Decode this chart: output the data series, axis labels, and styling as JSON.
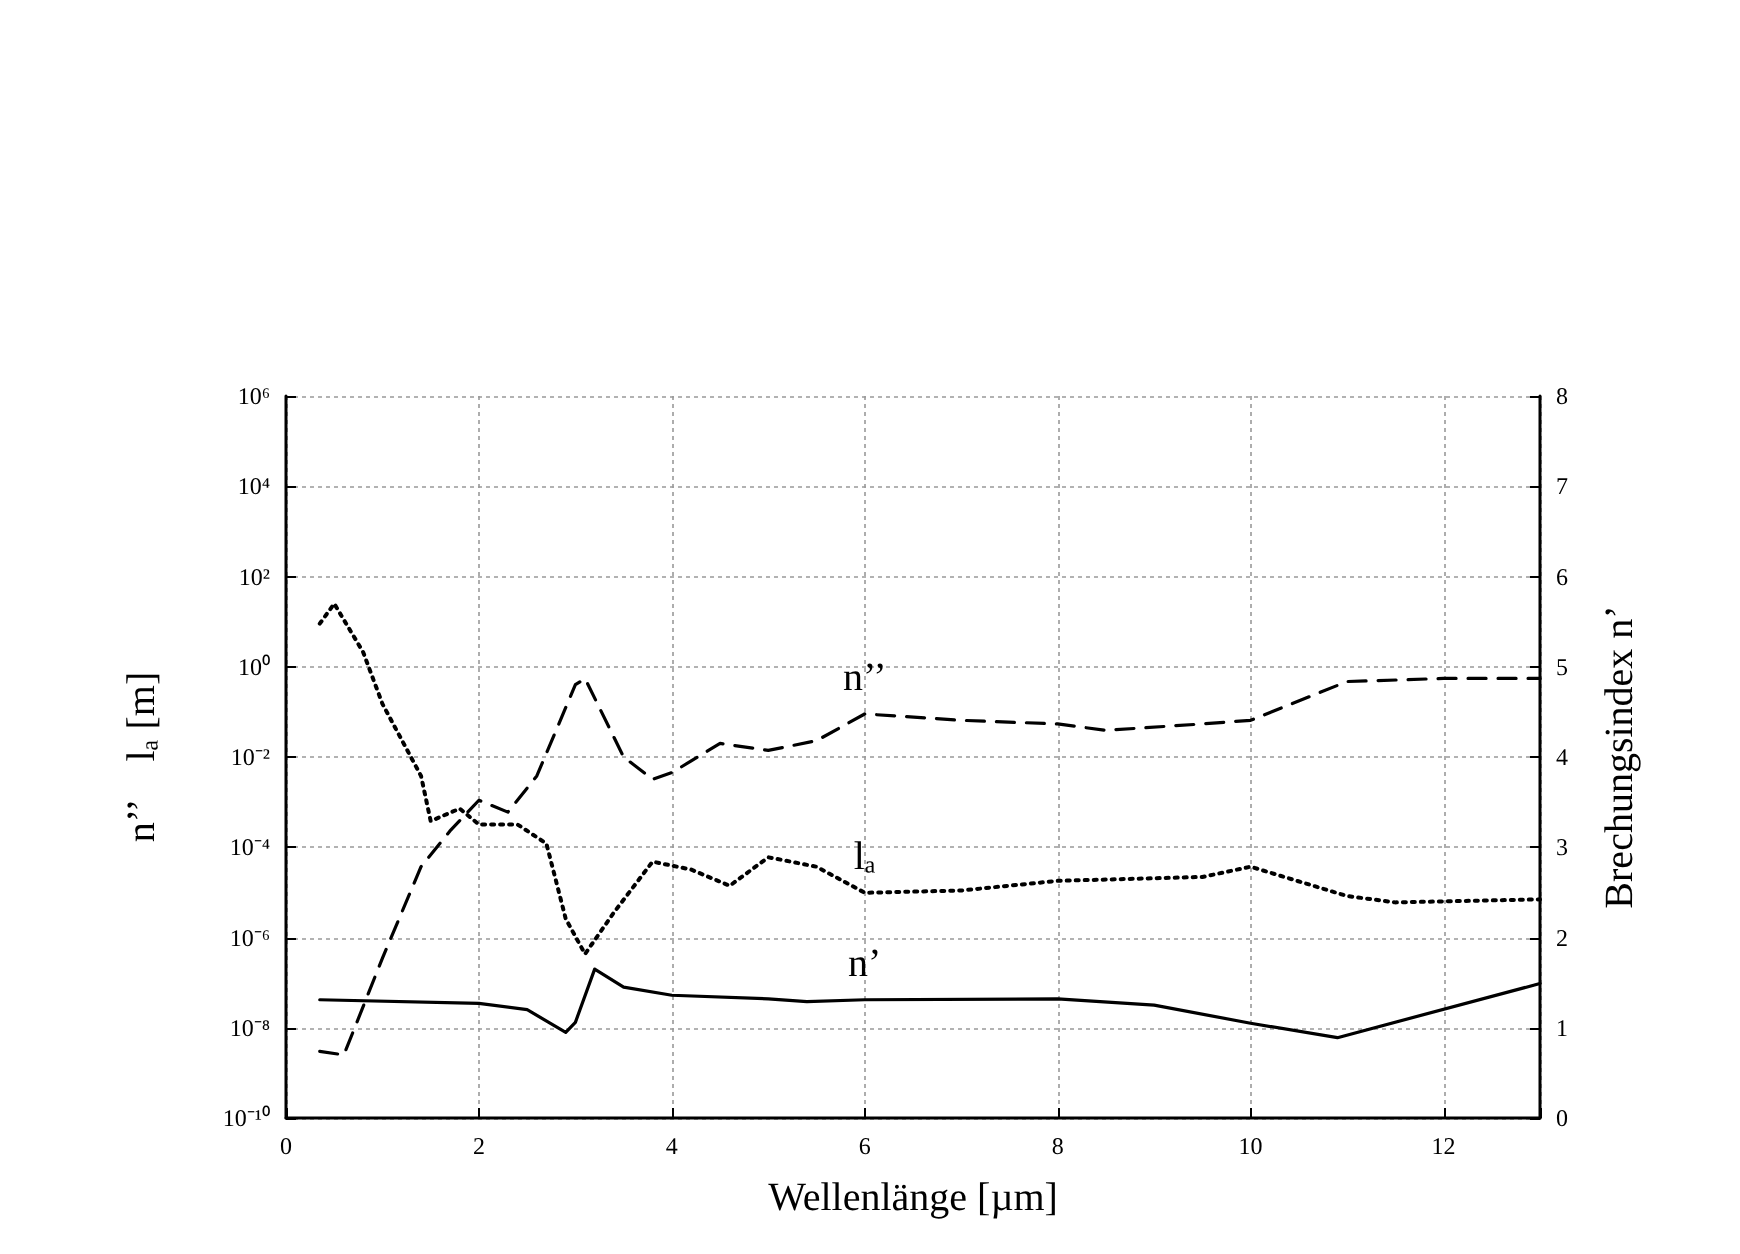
{
  "chart_data": {
    "type": "line",
    "xlabel": "Wellenlänge [µm]",
    "ylabel": "n’’    lₐ [m]",
    "y2label": "Brechungsindex n’",
    "xlim": [
      0,
      13
    ],
    "xticks": [
      0,
      2,
      4,
      6,
      8,
      10,
      12
    ],
    "ylim": [
      1e-10,
      1000000.0
    ],
    "yticks": [
      {
        "value": 1e-10,
        "label": "10⁻¹⁰"
      },
      {
        "value": 1e-08,
        "label": "10⁻⁸"
      },
      {
        "value": 1e-06,
        "label": "10⁻⁶"
      },
      {
        "value": 0.0001,
        "label": "10⁻⁴"
      },
      {
        "value": 0.01,
        "label": "10⁻²"
      },
      {
        "value": 1,
        "label": "10⁰"
      },
      {
        "value": 100,
        "label": "10²"
      },
      {
        "value": 10000,
        "label": "10⁴"
      },
      {
        "value": 1000000,
        "label": "10⁶"
      }
    ],
    "y2lim": [
      0,
      8
    ],
    "y2ticks": [
      0,
      1,
      2,
      3,
      4,
      5,
      6,
      7,
      8
    ],
    "log": "y",
    "grid": true,
    "legend": false,
    "marker": "none",
    "series": [
      {
        "name": "n’’",
        "color": "#000000",
        "line_style": "dashed",
        "x": [
          0.35,
          0.6,
          1,
          1.4,
          1.7,
          2,
          2.3,
          2.6,
          3,
          3.1,
          3.5,
          3.8,
          4,
          4.5,
          5,
          5.5,
          6,
          7,
          8,
          8.5,
          9.5,
          10,
          11,
          12,
          13
        ],
        "values": [
          3e-09,
          2.5e-09,
          3.5e-07,
          3.7e-05,
          0.00023,
          0.0011,
          0.0006,
          0.0038,
          0.4,
          0.55,
          0.01,
          0.0032,
          0.0045,
          0.02,
          0.014,
          0.023,
          0.09,
          0.065,
          0.054,
          0.039,
          0.054,
          0.065,
          0.47,
          0.55,
          0.55
        ]
      },
      {
        "name": "lₐ",
        "color": "#000000",
        "line_style": "dotted",
        "x": [
          0.35,
          0.5,
          0.8,
          1,
          1.4,
          1.5,
          1.8,
          2,
          2.4,
          2.7,
          2.9,
          3.1,
          3.4,
          3.8,
          4.2,
          4.6,
          5,
          5.5,
          6,
          7,
          8,
          9.5,
          10,
          11,
          11.5,
          13
        ],
        "values": [
          9,
          25,
          2.1,
          0.15,
          0.0038,
          0.00038,
          0.00072,
          0.00032,
          0.00032,
          0.00012,
          2.6e-06,
          4.3e-07,
          3.6e-06,
          4.8e-05,
          3.2e-05,
          1.4e-05,
          6e-05,
          3.7e-05,
          9.8e-06,
          1.1e-05,
          1.8e-05,
          2.2e-05,
          3.7e-05,
          8.3e-06,
          6e-06,
          7e-06
        ]
      },
      {
        "name": "n’",
        "color": "#000000",
        "line_style": "solid",
        "axis": "y2",
        "x": [
          0.35,
          2,
          2.5,
          2.9,
          3,
          3.2,
          3.5,
          4,
          5,
          5.4,
          6,
          8,
          9,
          10,
          10.9,
          13
        ],
        "values": [
          1.31,
          1.27,
          1.2,
          0.95,
          1.06,
          1.65,
          1.45,
          1.36,
          1.32,
          1.29,
          1.31,
          1.32,
          1.25,
          1.05,
          0.89,
          1.49
        ]
      }
    ]
  }
}
